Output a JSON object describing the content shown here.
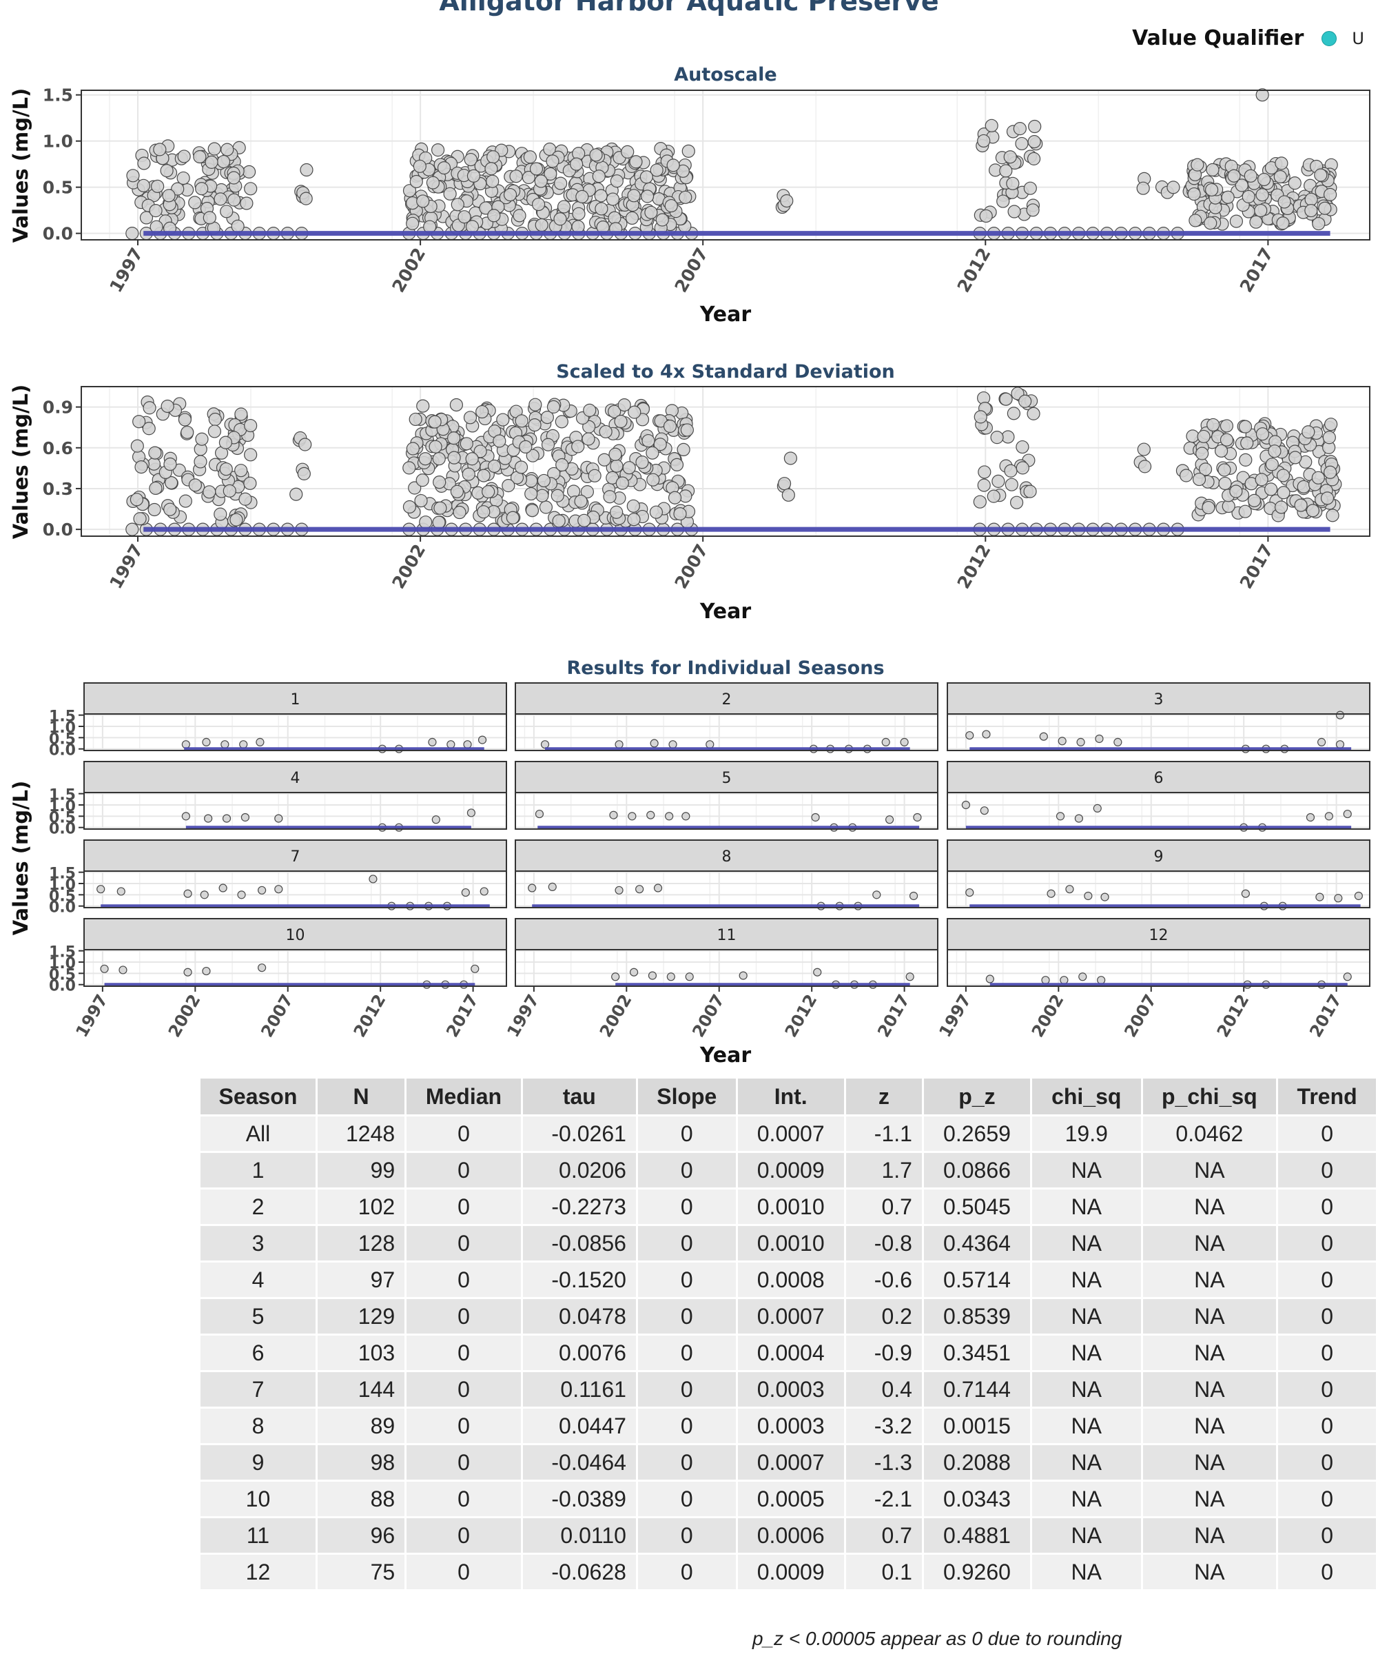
{
  "title": "Alligator Harbor Aquatic Preserve",
  "legend": {
    "title": "Value Qualifier",
    "label": "U",
    "color": "#2ec4c7"
  },
  "point_color": "#d3d3d3",
  "trend_color": "#4b4bb0",
  "chart_data": [
    {
      "type": "scatter",
      "title": "Autoscale",
      "xlabel": "Year",
      "ylabel": "Values (mg/L)",
      "xticks": [
        1997,
        2002,
        2007,
        2012,
        2017
      ],
      "yticks": [
        "0.0",
        "0.5",
        "1.0",
        "1.5"
      ],
      "xlim": [
        1996.0,
        2018.8
      ],
      "ylim": [
        -0.07,
        1.55
      ],
      "trend_line": {
        "x": [
          1997.1,
          2018.1
        ],
        "y": [
          0.0,
          0.0
        ]
      },
      "clusters": [
        {
          "x": [
            1996.9,
            1997.9
          ],
          "ymin": 0.05,
          "ymax": 0.95,
          "n": 45
        },
        {
          "x": [
            1998.0,
            1999.0
          ],
          "ymin": 0.05,
          "ymax": 0.93,
          "n": 55
        },
        {
          "x": [
            1999.8,
            2000.0
          ],
          "ymin": 0.25,
          "ymax": 0.72,
          "n": 6
        },
        {
          "x": [
            2001.8,
            2006.8
          ],
          "ymin": 0.05,
          "ymax": 0.92,
          "n": 330
        },
        {
          "x": [
            2008.4,
            2008.6
          ],
          "ymin": 0.25,
          "ymax": 0.55,
          "n": 4
        },
        {
          "x": [
            2011.9,
            2012.9
          ],
          "ymin": 0.15,
          "ymax": 1.2,
          "n": 35
        },
        {
          "x": [
            2014.6,
            2015.6
          ],
          "ymin": 0.3,
          "ymax": 0.6,
          "n": 5
        },
        {
          "x": [
            2015.6,
            2018.2
          ],
          "ymin": 0.1,
          "ymax": 0.78,
          "n": 150
        }
      ],
      "outliers": [
        {
          "x": 2016.9,
          "y": 1.5
        },
        {
          "x": 2018.1,
          "y": 0.42
        }
      ],
      "zeros": {
        "x": [
          [
            1996.9,
            2000.0
          ],
          [
            2001.8,
            2006.8
          ],
          [
            2011.9,
            2015.6
          ]
        ],
        "step": 0.25
      }
    },
    {
      "type": "scatter",
      "title": "Scaled to 4x Standard Deviation",
      "xlabel": "Year",
      "ylabel": "Values (mg/L)",
      "xticks": [
        1997,
        2002,
        2007,
        2012,
        2017
      ],
      "yticks": [
        "0.0",
        "0.3",
        "0.6",
        "0.9"
      ],
      "xlim": [
        1996.0,
        2018.8
      ],
      "ylim": [
        -0.05,
        1.05
      ],
      "trend_line": {
        "x": [
          1997.1,
          2018.1
        ],
        "y": [
          0.0,
          0.0
        ]
      },
      "clusters": [
        {
          "x": [
            1996.9,
            1997.9
          ],
          "ymin": 0.05,
          "ymax": 0.94,
          "n": 45
        },
        {
          "x": [
            1998.0,
            1999.0
          ],
          "ymin": 0.05,
          "ymax": 0.93,
          "n": 55
        },
        {
          "x": [
            1999.8,
            2000.0
          ],
          "ymin": 0.25,
          "ymax": 0.72,
          "n": 6
        },
        {
          "x": [
            2001.8,
            2006.8
          ],
          "ymin": 0.05,
          "ymax": 0.92,
          "n": 330
        },
        {
          "x": [
            2008.4,
            2008.6
          ],
          "ymin": 0.25,
          "ymax": 0.55,
          "n": 4
        },
        {
          "x": [
            2011.9,
            2012.9
          ],
          "ymin": 0.15,
          "ymax": 1.0,
          "n": 35
        },
        {
          "x": [
            2014.6,
            2015.6
          ],
          "ymin": 0.3,
          "ymax": 0.6,
          "n": 5
        },
        {
          "x": [
            2015.6,
            2018.2
          ],
          "ymin": 0.1,
          "ymax": 0.78,
          "n": 150
        }
      ],
      "outliers": [
        {
          "x": 2018.1,
          "y": 0.42
        }
      ],
      "zeros": {
        "x": [
          [
            1996.9,
            2000.0
          ],
          [
            2001.8,
            2006.8
          ],
          [
            2011.9,
            2015.6
          ]
        ],
        "step": 0.25
      }
    },
    {
      "type": "scatter",
      "title": "Results for Individual Seasons",
      "xlabel": "Year",
      "ylabel": "Values (mg/L)",
      "xticks": [
        1997,
        2002,
        2007,
        2012,
        2017
      ],
      "yticks": [
        "0.0",
        "0.5",
        "1.0",
        "1.5"
      ],
      "xlim": [
        1996.0,
        2018.8
      ],
      "ylim": [
        -0.07,
        1.55
      ],
      "facets": [
        {
          "label": "1",
          "trend": [
            2001.4,
            2017.6
          ],
          "points": [
            [
              2001.5,
              0.2
            ],
            [
              2002.6,
              0.3
            ],
            [
              2003.6,
              0.2
            ],
            [
              2004.6,
              0.2
            ],
            [
              2005.5,
              0.3
            ],
            [
              2012.1,
              0.0
            ],
            [
              2013.0,
              0.0
            ],
            [
              2014.8,
              0.3
            ],
            [
              2015.8,
              0.2
            ],
            [
              2016.7,
              0.2
            ],
            [
              2017.5,
              0.4
            ]
          ]
        },
        {
          "label": "2",
          "trend": [
            1997.6,
            2017.3
          ],
          "points": [
            [
              1997.6,
              0.2
            ],
            [
              2001.6,
              0.2
            ],
            [
              2003.5,
              0.25
            ],
            [
              2004.5,
              0.2
            ],
            [
              2006.5,
              0.2
            ],
            [
              2012.1,
              0.0
            ],
            [
              2013.0,
              0.0
            ],
            [
              2014.0,
              0.0
            ],
            [
              2015.0,
              0.0
            ],
            [
              2016.0,
              0.3
            ],
            [
              2017.0,
              0.3
            ]
          ]
        },
        {
          "label": "3",
          "trend": [
            1997.2,
            2017.8
          ],
          "points": [
            [
              1997.2,
              0.6
            ],
            [
              1998.1,
              0.65
            ],
            [
              2001.2,
              0.55
            ],
            [
              2002.2,
              0.35
            ],
            [
              2003.2,
              0.3
            ],
            [
              2004.2,
              0.45
            ],
            [
              2005.2,
              0.3
            ],
            [
              2012.1,
              0.0
            ],
            [
              2013.2,
              0.0
            ],
            [
              2014.2,
              0.0
            ],
            [
              2016.2,
              0.3
            ],
            [
              2017.2,
              0.2
            ],
            [
              2017.2,
              1.5
            ]
          ]
        },
        {
          "label": "4",
          "trend": [
            2001.5,
            2016.9
          ],
          "points": [
            [
              2001.5,
              0.5
            ],
            [
              2002.7,
              0.4
            ],
            [
              2003.7,
              0.4
            ],
            [
              2004.7,
              0.45
            ],
            [
              2006.5,
              0.4
            ],
            [
              2012.1,
              0.0
            ],
            [
              2013.0,
              0.0
            ],
            [
              2015.0,
              0.35
            ],
            [
              2016.9,
              0.65
            ]
          ]
        },
        {
          "label": "5",
          "trend": [
            1997.2,
            2017.8
          ],
          "points": [
            [
              1997.3,
              0.6
            ],
            [
              2001.3,
              0.55
            ],
            [
              2002.3,
              0.5
            ],
            [
              2003.3,
              0.55
            ],
            [
              2004.3,
              0.5
            ],
            [
              2005.2,
              0.5
            ],
            [
              2012.2,
              0.45
            ],
            [
              2013.2,
              0.0
            ],
            [
              2014.2,
              0.0
            ],
            [
              2016.2,
              0.35
            ],
            [
              2017.7,
              0.45
            ]
          ]
        },
        {
          "label": "6",
          "trend": [
            1997.0,
            2017.8
          ],
          "points": [
            [
              1997.0,
              1.0
            ],
            [
              1998.0,
              0.75
            ],
            [
              2002.1,
              0.5
            ],
            [
              2003.1,
              0.4
            ],
            [
              2004.1,
              0.85
            ],
            [
              2012.0,
              0.0
            ],
            [
              2013.0,
              0.0
            ],
            [
              2015.6,
              0.45
            ],
            [
              2016.6,
              0.5
            ],
            [
              2017.6,
              0.6
            ]
          ]
        },
        {
          "label": "7",
          "trend": [
            1996.9,
            2017.9
          ],
          "points": [
            [
              1996.9,
              0.75
            ],
            [
              1998.0,
              0.65
            ],
            [
              2001.6,
              0.55
            ],
            [
              2002.5,
              0.5
            ],
            [
              2003.5,
              0.8
            ],
            [
              2004.5,
              0.5
            ],
            [
              2005.6,
              0.7
            ],
            [
              2006.5,
              0.75
            ],
            [
              2011.6,
              1.2
            ],
            [
              2012.6,
              0.0
            ],
            [
              2013.6,
              0.0
            ],
            [
              2014.6,
              0.0
            ],
            [
              2015.6,
              0.0
            ],
            [
              2016.6,
              0.6
            ],
            [
              2017.6,
              0.65
            ]
          ]
        },
        {
          "label": "8",
          "trend": [
            1996.9,
            2017.8
          ],
          "points": [
            [
              1996.9,
              0.8
            ],
            [
              1998.0,
              0.85
            ],
            [
              2001.6,
              0.7
            ],
            [
              2002.7,
              0.75
            ],
            [
              2003.7,
              0.8
            ],
            [
              2012.5,
              0.0
            ],
            [
              2013.5,
              0.0
            ],
            [
              2014.5,
              0.0
            ],
            [
              2015.5,
              0.5
            ],
            [
              2017.5,
              0.45
            ]
          ]
        },
        {
          "label": "9",
          "trend": [
            1997.2,
            2018.3
          ],
          "points": [
            [
              1997.2,
              0.6
            ],
            [
              2001.6,
              0.55
            ],
            [
              2002.6,
              0.75
            ],
            [
              2003.6,
              0.45
            ],
            [
              2004.5,
              0.4
            ],
            [
              2012.1,
              0.55
            ],
            [
              2013.1,
              0.0
            ],
            [
              2014.1,
              0.0
            ],
            [
              2016.1,
              0.4
            ],
            [
              2017.1,
              0.35
            ],
            [
              2018.2,
              0.45
            ]
          ]
        },
        {
          "label": "10",
          "trend": [
            1997.1,
            2017.1
          ],
          "points": [
            [
              1997.1,
              0.7
            ],
            [
              1998.1,
              0.65
            ],
            [
              2001.6,
              0.55
            ],
            [
              2002.6,
              0.6
            ],
            [
              2005.6,
              0.75
            ],
            [
              2014.5,
              0.0
            ],
            [
              2015.5,
              0.0
            ],
            [
              2016.5,
              0.0
            ],
            [
              2017.1,
              0.7
            ]
          ]
        },
        {
          "label": "11",
          "trend": [
            2001.4,
            2017.3
          ],
          "points": [
            [
              2001.4,
              0.35
            ],
            [
              2002.4,
              0.55
            ],
            [
              2003.4,
              0.4
            ],
            [
              2004.4,
              0.35
            ],
            [
              2005.4,
              0.35
            ],
            [
              2008.3,
              0.4
            ],
            [
              2012.3,
              0.55
            ],
            [
              2013.3,
              0.0
            ],
            [
              2014.3,
              0.0
            ],
            [
              2015.3,
              0.0
            ],
            [
              2017.3,
              0.35
            ]
          ]
        },
        {
          "label": "12",
          "trend": [
            1998.3,
            2017.6
          ],
          "points": [
            [
              1998.3,
              0.25
            ],
            [
              2001.3,
              0.2
            ],
            [
              2002.3,
              0.2
            ],
            [
              2003.3,
              0.35
            ],
            [
              2004.3,
              0.2
            ],
            [
              2012.2,
              0.0
            ],
            [
              2013.2,
              0.0
            ],
            [
              2016.2,
              0.0
            ],
            [
              2017.6,
              0.35
            ]
          ]
        }
      ]
    },
    {
      "type": "table",
      "columns": [
        "Season",
        "N",
        "Median",
        "tau",
        "Slope",
        "Int.",
        "z",
        "p_z",
        "chi_sq",
        "p_chi_sq",
        "Trend"
      ],
      "rows": [
        [
          "All",
          "1248",
          "0",
          "-0.0261",
          "0",
          "0.0007",
          "-1.1",
          "0.2659",
          "19.9",
          "0.0462",
          "0"
        ],
        [
          "1",
          "99",
          "0",
          "0.0206",
          "0",
          "0.0009",
          "1.7",
          "0.0866",
          "NA",
          "NA",
          "0"
        ],
        [
          "2",
          "102",
          "0",
          "-0.2273",
          "0",
          "0.0010",
          "0.7",
          "0.5045",
          "NA",
          "NA",
          "0"
        ],
        [
          "3",
          "128",
          "0",
          "-0.0856",
          "0",
          "0.0010",
          "-0.8",
          "0.4364",
          "NA",
          "NA",
          "0"
        ],
        [
          "4",
          "97",
          "0",
          "-0.1520",
          "0",
          "0.0008",
          "-0.6",
          "0.5714",
          "NA",
          "NA",
          "0"
        ],
        [
          "5",
          "129",
          "0",
          "0.0478",
          "0",
          "0.0007",
          "0.2",
          "0.8539",
          "NA",
          "NA",
          "0"
        ],
        [
          "6",
          "103",
          "0",
          "0.0076",
          "0",
          "0.0004",
          "-0.9",
          "0.3451",
          "NA",
          "NA",
          "0"
        ],
        [
          "7",
          "144",
          "0",
          "0.1161",
          "0",
          "0.0003",
          "0.4",
          "0.7144",
          "NA",
          "NA",
          "0"
        ],
        [
          "8",
          "89",
          "0",
          "0.0447",
          "0",
          "0.0003",
          "-3.2",
          "0.0015",
          "NA",
          "NA",
          "0"
        ],
        [
          "9",
          "98",
          "0",
          "-0.0464",
          "0",
          "0.0007",
          "-1.3",
          "0.2088",
          "NA",
          "NA",
          "0"
        ],
        [
          "10",
          "88",
          "0",
          "-0.0389",
          "0",
          "0.0005",
          "-2.1",
          "0.0343",
          "NA",
          "NA",
          "0"
        ],
        [
          "11",
          "96",
          "0",
          "0.0110",
          "0",
          "0.0006",
          "0.7",
          "0.4881",
          "NA",
          "NA",
          "0"
        ],
        [
          "12",
          "75",
          "0",
          "-0.0628",
          "0",
          "0.0009",
          "0.1",
          "0.9260",
          "NA",
          "NA",
          "0"
        ]
      ]
    }
  ],
  "footnote": "p_z < 0.00005 appear as 0 due to rounding"
}
